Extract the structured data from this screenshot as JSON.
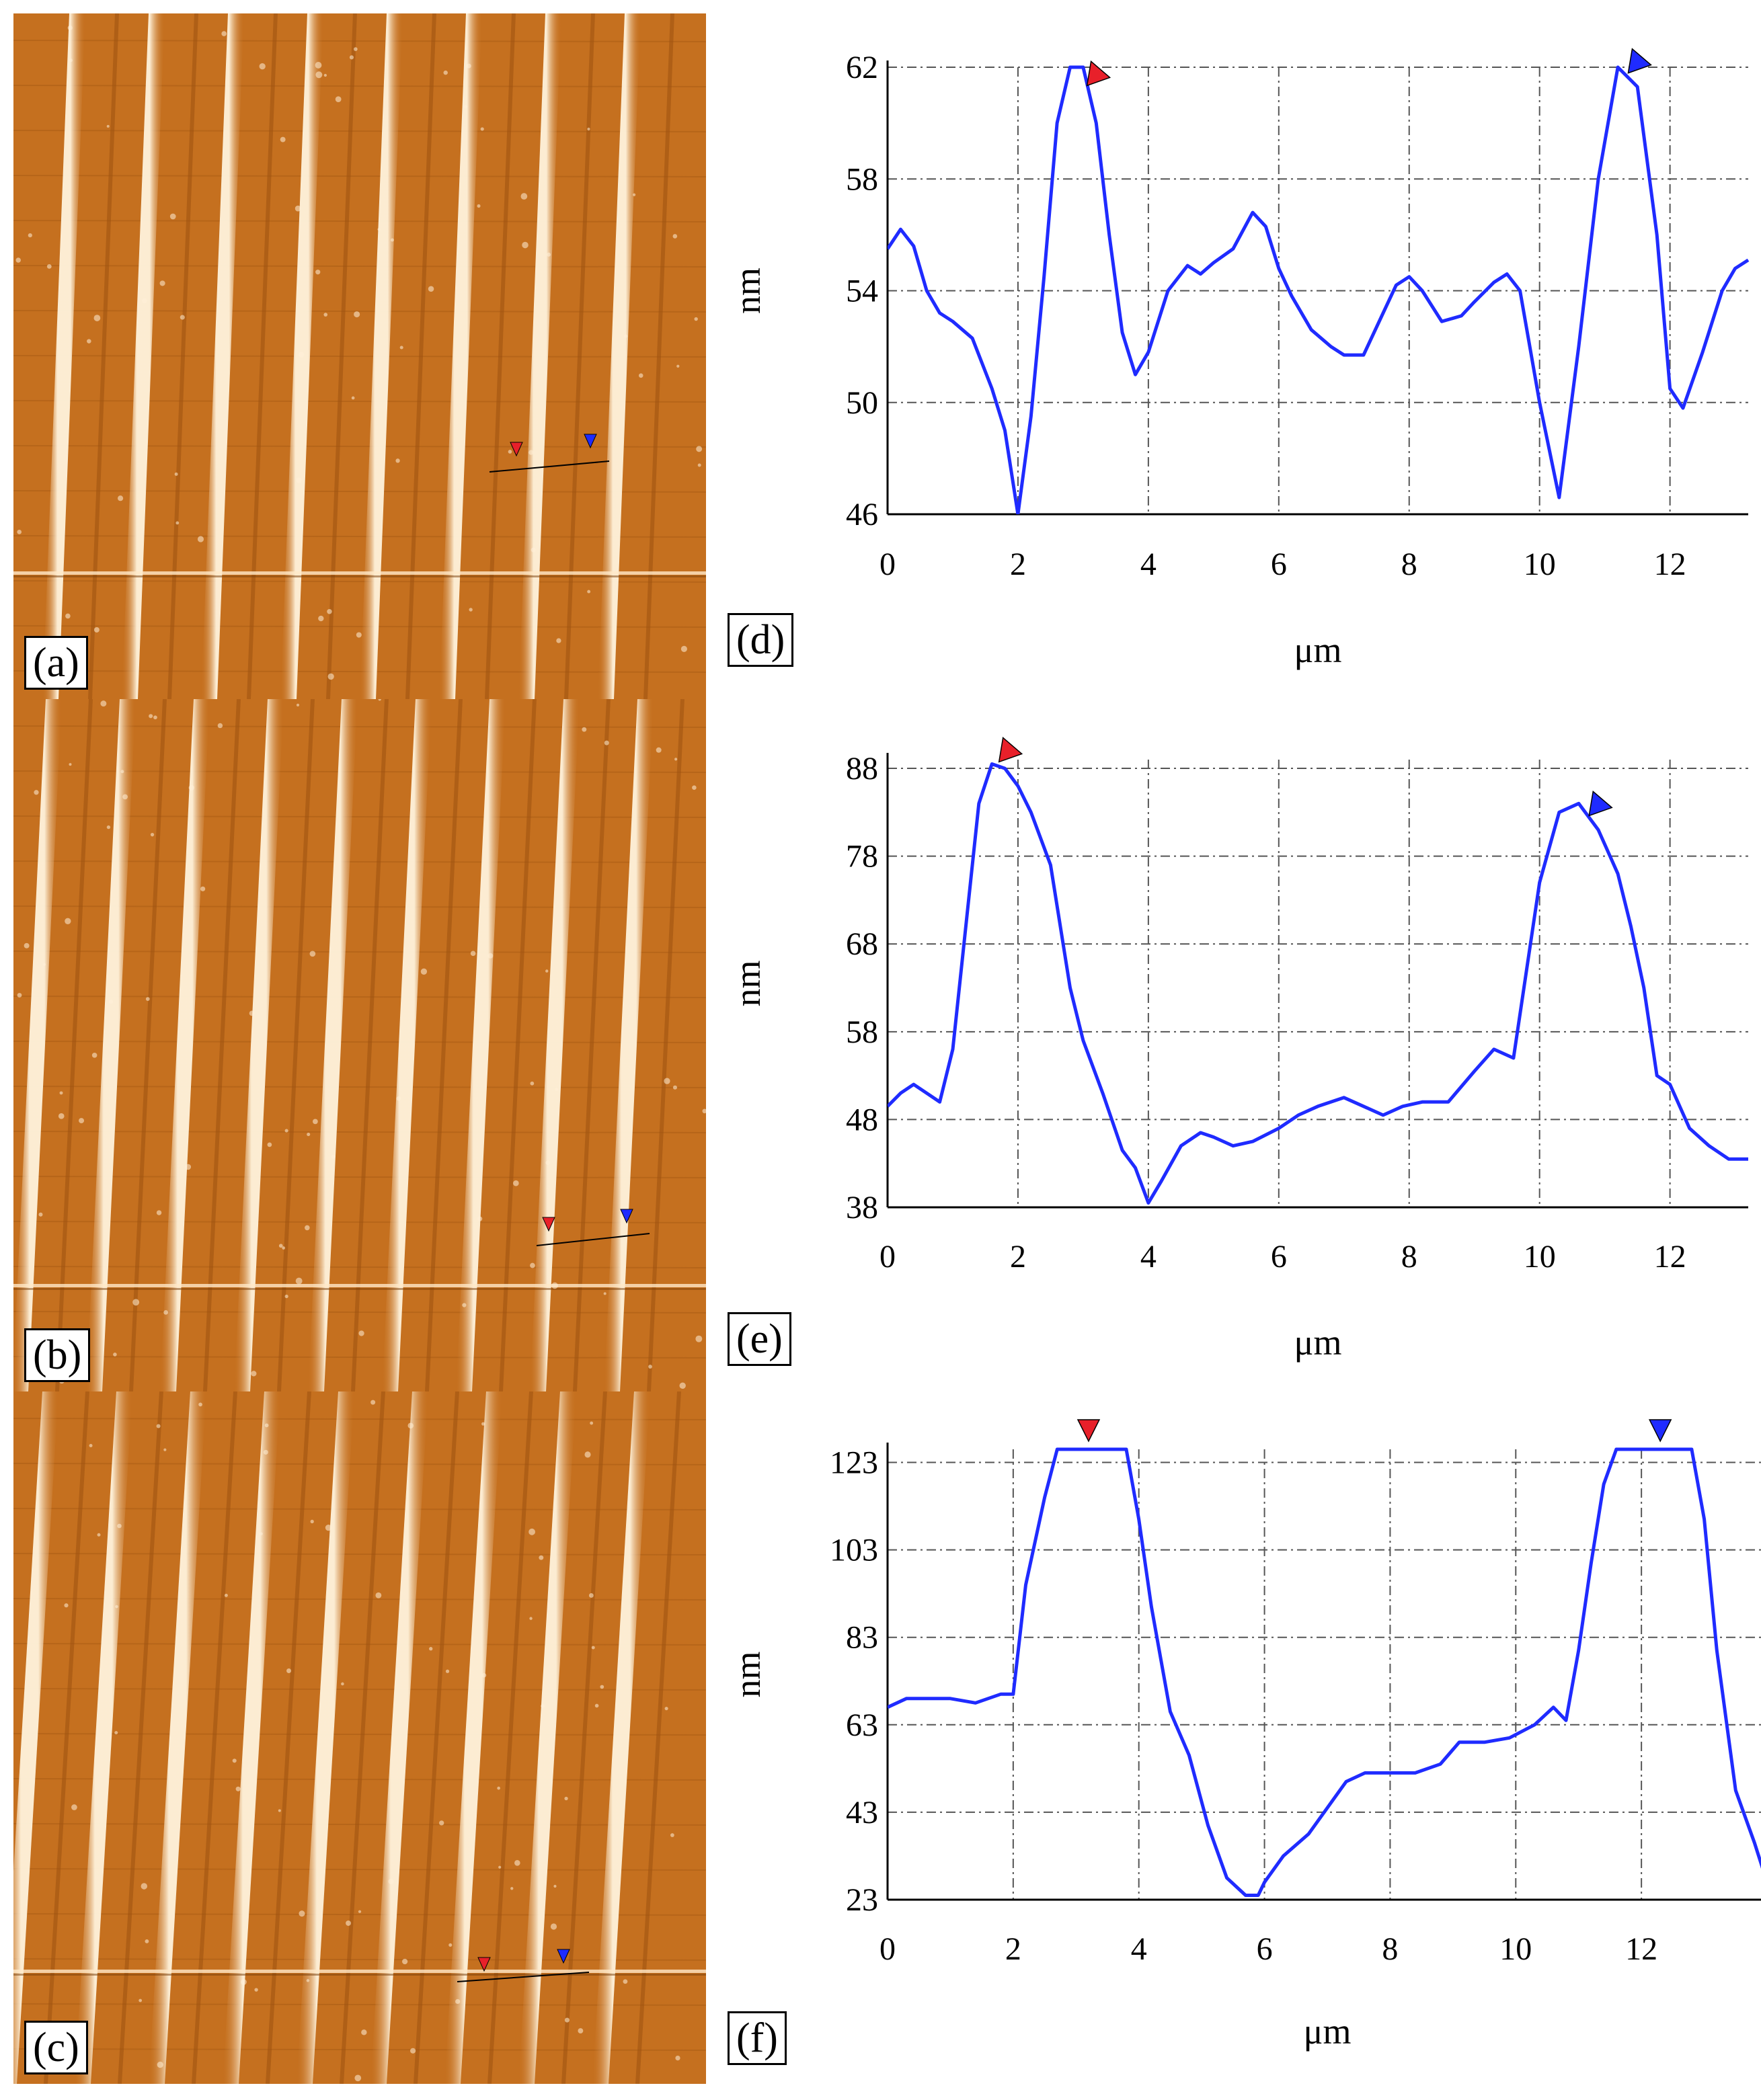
{
  "colors": {
    "profile_line": "#1f2bff",
    "marker_red": "#e8202a",
    "marker_blue": "#1f2bff",
    "afm_base": "#c5701f",
    "afm_stripe": "#fff3dc",
    "grid": "#555555"
  },
  "afm_panels": [
    {
      "label": "(a)",
      "stripe_count": 8
    },
    {
      "label": "(b)",
      "stripe_count": 9
    },
    {
      "label": "(c)",
      "stripe_count": 9
    }
  ],
  "chart_data": [
    {
      "type": "line",
      "label": "(d)",
      "xlabel": "μm",
      "ylabel": "nm",
      "xlim": [
        0,
        13.2
      ],
      "ylim": [
        46,
        62
      ],
      "xticks": [
        0,
        2,
        4,
        6,
        8,
        10,
        12
      ],
      "yticks": [
        46,
        50,
        54,
        58,
        62
      ],
      "marker_red_x": 3.1,
      "marker_blue_x": 11.4,
      "x": [
        0,
        0.2,
        0.4,
        0.6,
        0.8,
        1.0,
        1.3,
        1.6,
        1.8,
        2.0,
        2.2,
        2.4,
        2.6,
        2.8,
        3.0,
        3.2,
        3.4,
        3.6,
        3.8,
        4.0,
        4.3,
        4.6,
        4.8,
        5.0,
        5.3,
        5.6,
        5.8,
        6.0,
        6.2,
        6.5,
        6.8,
        7.0,
        7.3,
        7.6,
        7.8,
        8.0,
        8.2,
        8.5,
        8.8,
        9.0,
        9.3,
        9.5,
        9.7,
        10.0,
        10.3,
        10.6,
        10.9,
        11.2,
        11.5,
        11.8,
        12.0,
        12.2,
        12.5,
        12.8,
        13.0,
        13.2
      ],
      "y": [
        55.5,
        56.2,
        55.6,
        54.0,
        53.2,
        52.9,
        52.3,
        50.5,
        49.0,
        46.0,
        49.5,
        54.5,
        60.0,
        62.5,
        62.3,
        60.0,
        56.0,
        52.5,
        51.0,
        51.8,
        54.0,
        54.9,
        54.6,
        55.0,
        55.5,
        56.8,
        56.3,
        54.8,
        53.8,
        52.6,
        52.0,
        51.7,
        51.7,
        53.2,
        54.2,
        54.5,
        54.0,
        52.9,
        53.1,
        53.6,
        54.3,
        54.6,
        54.0,
        50.0,
        46.6,
        52.0,
        58.0,
        62.2,
        61.3,
        56.0,
        50.5,
        49.8,
        51.8,
        54.0,
        54.8,
        55.1
      ]
    },
    {
      "type": "line",
      "label": "(e)",
      "xlabel": "μm",
      "ylabel": "nm",
      "xlim": [
        0,
        13.2
      ],
      "ylim": [
        38,
        89
      ],
      "xticks": [
        0,
        2,
        4,
        6,
        8,
        10,
        12
      ],
      "yticks": [
        38,
        48,
        58,
        68,
        78,
        88
      ],
      "marker_red_x": 1.75,
      "marker_blue_x": 10.8,
      "x": [
        0,
        0.2,
        0.4,
        0.6,
        0.8,
        1.0,
        1.2,
        1.4,
        1.6,
        1.8,
        2.0,
        2.2,
        2.5,
        2.8,
        3.0,
        3.3,
        3.6,
        3.8,
        4.0,
        4.2,
        4.5,
        4.8,
        5.0,
        5.3,
        5.6,
        6.0,
        6.3,
        6.6,
        7.0,
        7.3,
        7.6,
        7.9,
        8.2,
        8.6,
        9.0,
        9.3,
        9.6,
        9.8,
        10.0,
        10.3,
        10.6,
        10.9,
        11.2,
        11.4,
        11.6,
        11.8,
        12.0,
        12.3,
        12.6,
        12.9,
        13.2
      ],
      "y": [
        49.5,
        51.0,
        52.0,
        51.0,
        50.0,
        56.0,
        70.0,
        84.0,
        88.5,
        88.0,
        86.0,
        83.0,
        77.0,
        63.0,
        57.0,
        51.0,
        44.5,
        42.5,
        38.5,
        41.0,
        45.0,
        46.5,
        46.0,
        45.0,
        45.5,
        47.0,
        48.5,
        49.5,
        50.5,
        49.5,
        48.5,
        49.5,
        50.0,
        50.0,
        53.5,
        56.0,
        55.0,
        65.0,
        75.0,
        83.0,
        84.0,
        81.0,
        76.0,
        70.0,
        63.0,
        53.0,
        52.0,
        47.0,
        45.0,
        43.5,
        43.5
      ]
    },
    {
      "type": "line",
      "label": "(f)",
      "xlabel": "μm",
      "ylabel": "nm",
      "xlim": [
        0,
        14
      ],
      "ylim": [
        23,
        126
      ],
      "xticks": [
        0,
        2,
        4,
        6,
        8,
        10,
        12
      ],
      "yticks": [
        23,
        43,
        63,
        83,
        103,
        123
      ],
      "marker_red_x": 3.2,
      "marker_blue_x": 12.3,
      "x": [
        0,
        0.3,
        0.6,
        1.0,
        1.4,
        1.8,
        2.0,
        2.2,
        2.5,
        2.7,
        3.0,
        3.3,
        3.6,
        3.8,
        4.0,
        4.2,
        4.5,
        4.8,
        5.1,
        5.4,
        5.7,
        5.9,
        6.0,
        6.3,
        6.7,
        7.0,
        7.3,
        7.6,
        8.0,
        8.4,
        8.8,
        9.1,
        9.5,
        9.9,
        10.3,
        10.6,
        10.8,
        11.0,
        11.2,
        11.4,
        11.6,
        11.8,
        12.0,
        12.3,
        12.6,
        12.8,
        13.0,
        13.2,
        13.5,
        13.8,
        14.0
      ],
      "y": [
        67,
        69,
        69,
        69,
        68,
        70,
        70,
        95,
        115,
        126,
        126,
        126,
        126,
        126,
        110,
        90,
        66,
        56,
        40,
        28,
        24,
        24,
        27,
        33,
        38,
        44,
        50,
        52,
        52,
        52,
        54,
        59,
        59,
        60,
        63,
        67,
        64,
        80,
        100,
        118,
        126,
        126,
        126,
        126,
        126,
        126,
        110,
        80,
        48,
        36,
        27
      ]
    }
  ]
}
